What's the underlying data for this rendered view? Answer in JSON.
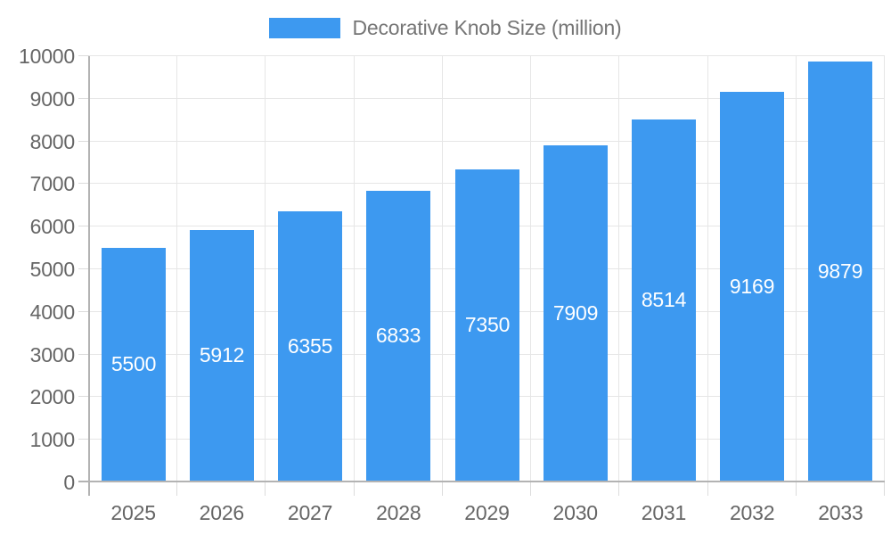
{
  "legend": {
    "label": "Decorative Knob Size (million)"
  },
  "chart_data": {
    "type": "bar",
    "title": "Decorative Knob Size (million)",
    "categories": [
      "2025",
      "2026",
      "2027",
      "2028",
      "2029",
      "2030",
      "2031",
      "2032",
      "2033"
    ],
    "values": [
      5500,
      5912,
      6355,
      6833,
      7350,
      7909,
      8514,
      9169,
      9879
    ],
    "xlabel": "",
    "ylabel": "",
    "ylim": [
      0,
      10000
    ],
    "yticks": [
      0,
      1000,
      2000,
      3000,
      4000,
      5000,
      6000,
      7000,
      8000,
      9000,
      10000
    ],
    "grid": true,
    "legend_position": "top-center",
    "value_labels": "inside-center"
  },
  "colors": {
    "bar": "#3d99f0",
    "value_label": "#ffffff",
    "grid": "#e6e6e6",
    "axis": "#b3b3b3",
    "tick": "#dcdcdc",
    "axis_label": "#666666",
    "legend_text": "#757575",
    "background": "#ffffff"
  }
}
